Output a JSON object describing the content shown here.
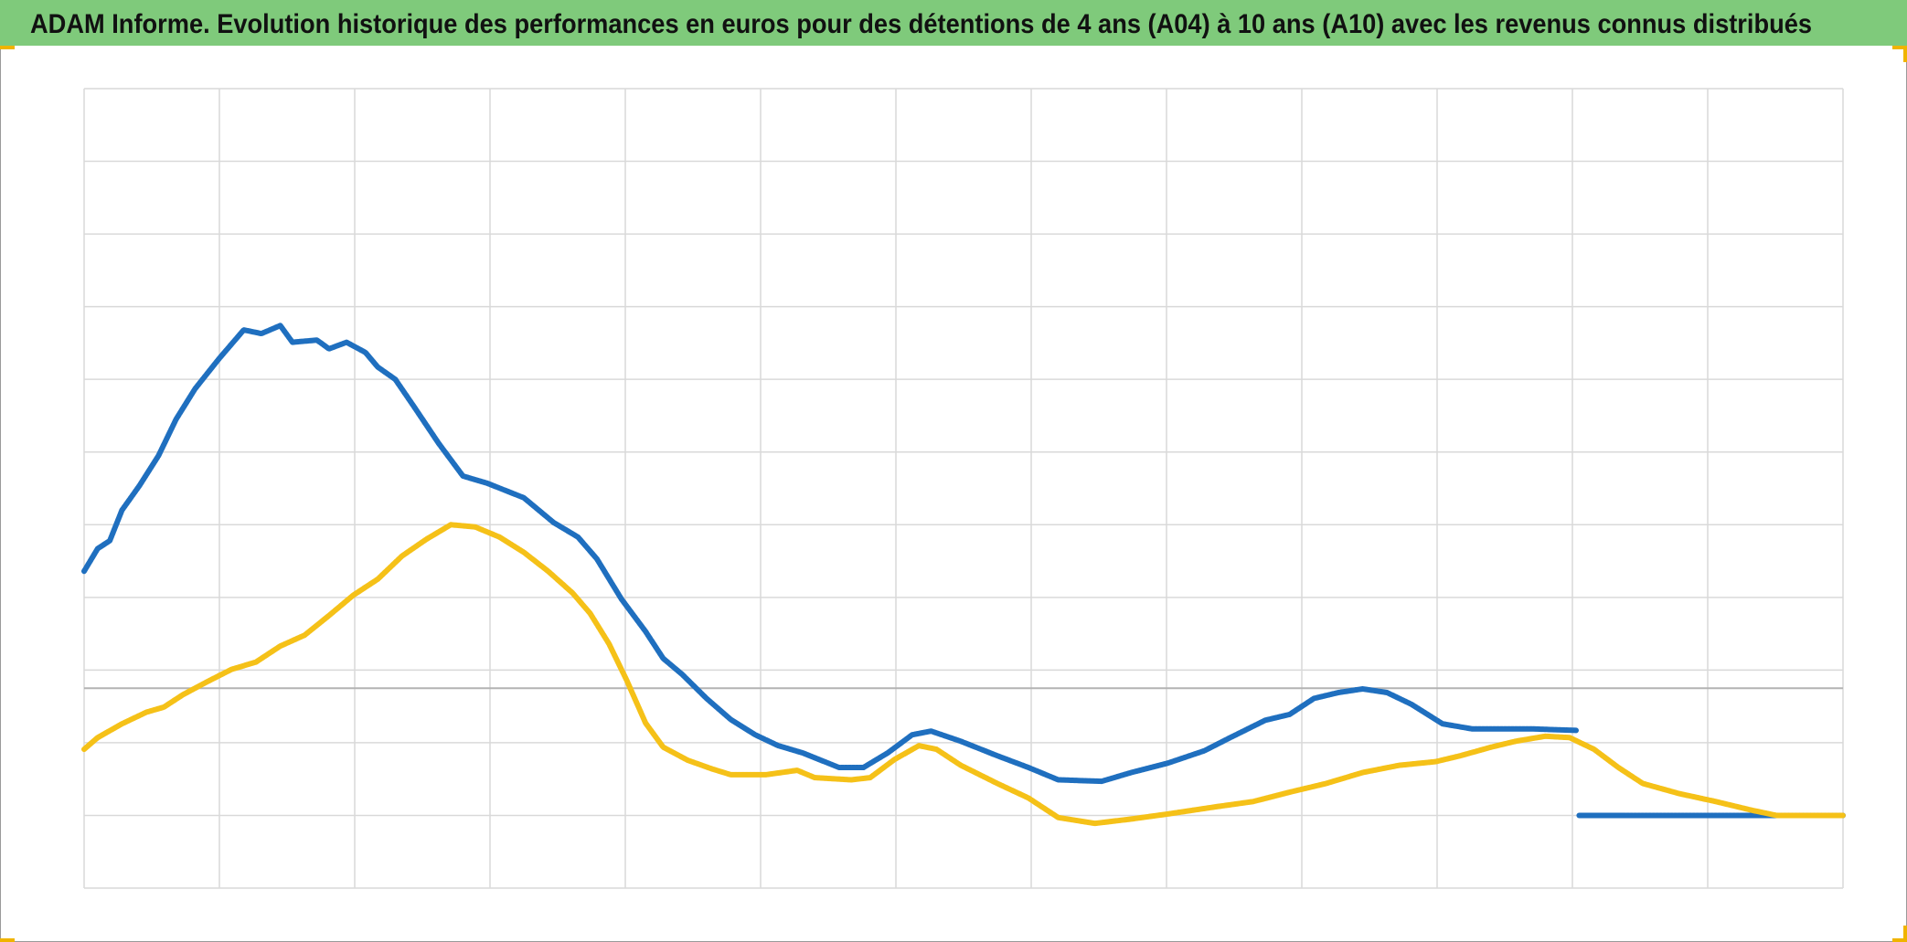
{
  "chart_data": {
    "type": "line",
    "title": "ADAM Informe. Evolution historique des performances en euros pour des détentions de 4 ans (A04) à 10 ans (A10) avec les revenus connus distribués",
    "xlim": [
      0,
      13
    ],
    "xticks": [
      0,
      1,
      2,
      3,
      4,
      5,
      6,
      7,
      8,
      9,
      10,
      11,
      12,
      13
    ],
    "ylim": [
      0,
      11
    ],
    "yticks": [
      0,
      1,
      2,
      3,
      4,
      5,
      6,
      7,
      8,
      9,
      10,
      11
    ],
    "baseline": 2.75,
    "grid": true,
    "series": [
      {
        "color": "#1f6fbf",
        "x": [
          0,
          0.1,
          0.19,
          0.28,
          0.41,
          0.55,
          0.68,
          0.82,
          1.0,
          1.18,
          1.31,
          1.45,
          1.54,
          1.72,
          1.81,
          1.94,
          2.08,
          2.17,
          2.3,
          2.44,
          2.62,
          2.8,
          2.98,
          3.25,
          3.47,
          3.65,
          3.79,
          3.97,
          4.15,
          4.28,
          4.42,
          4.6,
          4.78,
          4.96,
          5.13,
          5.31,
          5.58,
          5.76,
          5.94,
          6.12,
          6.26,
          6.48,
          6.75,
          6.98,
          7.2,
          7.52,
          7.74,
          8.01,
          8.28,
          8.46,
          8.73,
          8.91,
          9.09,
          9.27,
          9.45,
          9.63,
          9.81,
          10.04,
          10.26,
          10.71,
          11.03,
          11.04,
          11.05,
          13
        ],
        "values": [
          4.36,
          4.67,
          4.78,
          5.2,
          5.54,
          5.95,
          6.45,
          6.87,
          7.29,
          7.68,
          7.63,
          7.74,
          7.51,
          7.54,
          7.42,
          7.51,
          7.37,
          7.17,
          7.0,
          6.62,
          6.12,
          5.67,
          5.57,
          5.37,
          5.03,
          4.83,
          4.53,
          3.98,
          3.53,
          3.16,
          2.94,
          2.61,
          2.32,
          2.11,
          1.96,
          1.86,
          1.66,
          1.66,
          1.86,
          2.11,
          2.16,
          2.02,
          1.82,
          1.66,
          1.49,
          1.47,
          1.59,
          1.72,
          1.89,
          2.06,
          2.31,
          2.39,
          2.61,
          2.69,
          2.74,
          2.69,
          2.53,
          2.26,
          2.19,
          2.19,
          2.17,
          null,
          1.0,
          1.0
        ]
      },
      {
        "color": "#f5c118",
        "x": [
          0,
          0.1,
          0.28,
          0.46,
          0.59,
          0.73,
          0.91,
          1.09,
          1.27,
          1.45,
          1.63,
          1.81,
          1.99,
          2.17,
          2.35,
          2.53,
          2.71,
          2.89,
          3.07,
          3.25,
          3.43,
          3.61,
          3.74,
          3.88,
          4.01,
          4.15,
          4.28,
          4.46,
          4.64,
          4.78,
          5.04,
          5.27,
          5.4,
          5.67,
          5.81,
          5.99,
          6.17,
          6.3,
          6.48,
          6.75,
          6.98,
          7.2,
          7.47,
          7.74,
          8.01,
          8.37,
          8.64,
          8.91,
          9.18,
          9.45,
          9.72,
          9.99,
          10.17,
          10.4,
          10.58,
          10.8,
          10.98,
          11.16,
          11.34,
          11.52,
          11.79,
          12.06,
          12.33,
          12.51,
          13
        ],
        "values": [
          1.91,
          2.07,
          2.26,
          2.42,
          2.49,
          2.66,
          2.84,
          3.01,
          3.11,
          3.33,
          3.48,
          3.75,
          4.03,
          4.25,
          4.57,
          4.8,
          5.0,
          4.97,
          4.83,
          4.62,
          4.36,
          4.06,
          3.78,
          3.36,
          2.86,
          2.27,
          1.94,
          1.76,
          1.64,
          1.56,
          1.56,
          1.62,
          1.52,
          1.49,
          1.52,
          1.77,
          1.96,
          1.91,
          1.69,
          1.44,
          1.24,
          0.97,
          0.89,
          0.95,
          1.02,
          1.12,
          1.19,
          1.32,
          1.44,
          1.59,
          1.69,
          1.74,
          1.82,
          1.94,
          2.02,
          2.09,
          2.07,
          1.91,
          1.66,
          1.44,
          1.3,
          1.19,
          1.07,
          1.0,
          1.0
        ]
      }
    ]
  }
}
